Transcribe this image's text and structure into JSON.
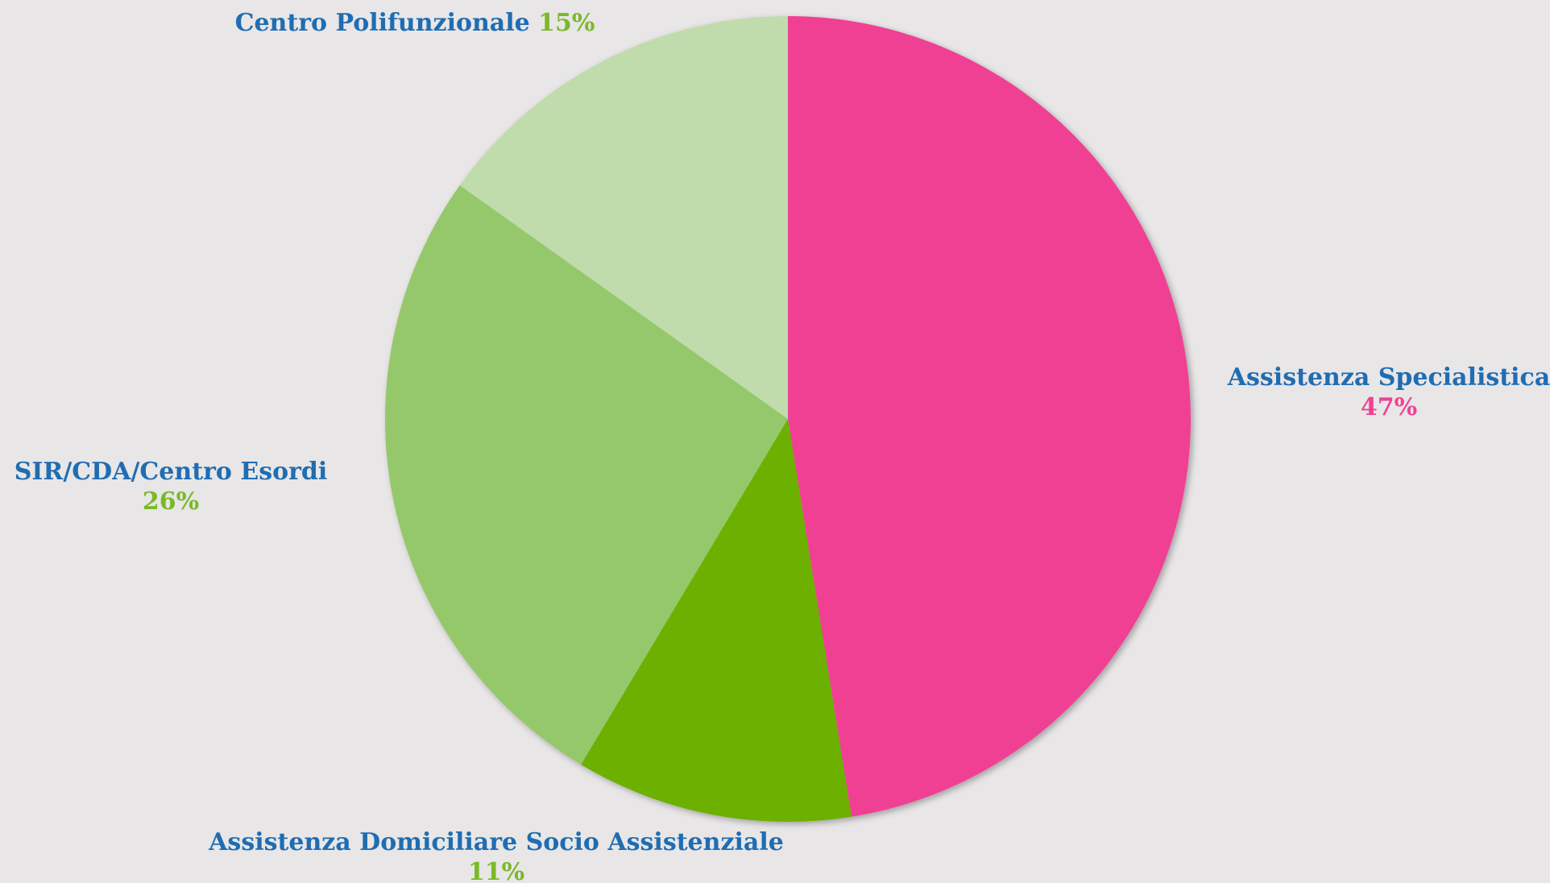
{
  "chart_data": {
    "type": "pie",
    "categories": [
      "Assistenza Specialistica",
      "Assistenza Domiciliare Socio Assistenziale",
      "SIR/CDA/Centro Esordi",
      "Centro Polifunzionale"
    ],
    "values": [
      47,
      11,
      26,
      15
    ],
    "value_labels": [
      "47%",
      "11%",
      "26%",
      "15%"
    ],
    "colors": [
      "#ef4194",
      "#6cb000",
      "#95c86b",
      "#c0dcad"
    ],
    "label_colors": [
      "#ef4194",
      "#7ab929",
      "#7ab929",
      "#7ab929"
    ]
  }
}
